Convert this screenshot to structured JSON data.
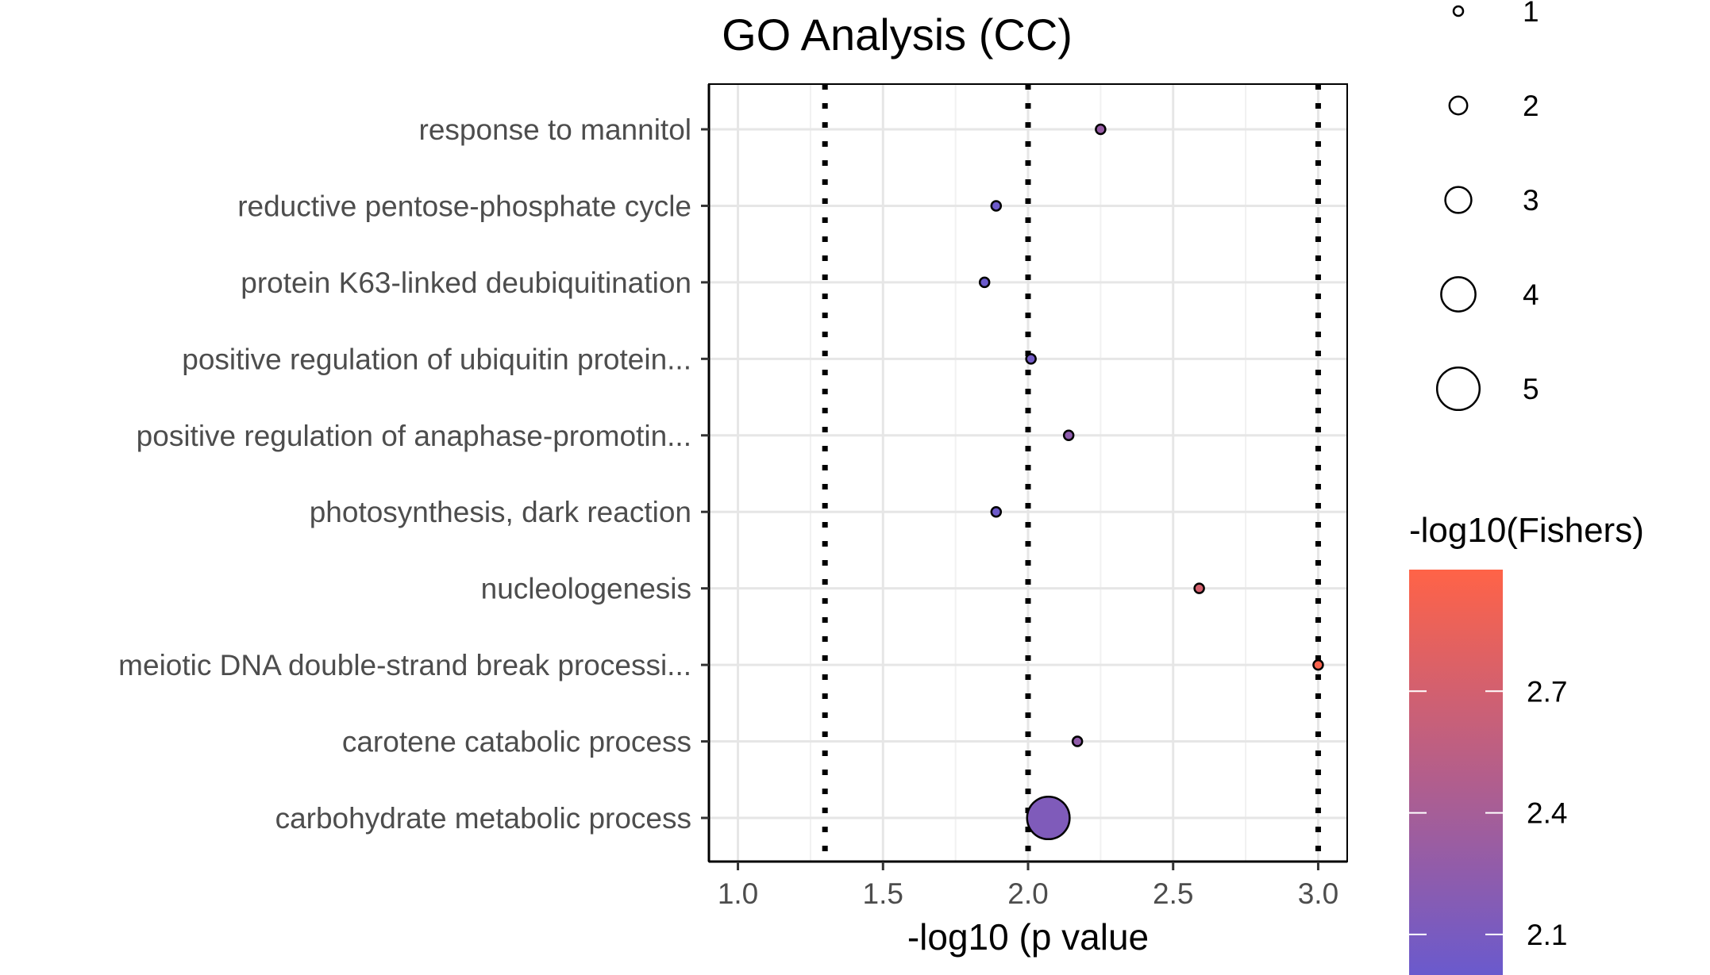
{
  "chart_data": {
    "type": "scatter",
    "title": "GO Analysis (CC)",
    "xlabel": "-log10 (p value",
    "ylabel": "",
    "xlim": [
      0.9,
      3.1
    ],
    "x_ticks": [
      "1.0",
      "1.5",
      "2.0",
      "2.5",
      "3.0"
    ],
    "x_tick_values": [
      1.0,
      1.5,
      2.0,
      2.5,
      3.0
    ],
    "grid": true,
    "reference_lines": [
      1.3,
      2.0,
      3.0
    ],
    "categories": [
      "response to mannitol",
      "reductive pentose-phosphate cycle",
      "protein K63-linked deubiquitination",
      "positive regulation of ubiquitin protein...",
      "positive regulation of anaphase-promotin...",
      "photosynthesis, dark reaction",
      "nucleologenesis",
      "meiotic DNA double-strand break processi...",
      "carotene catabolic process",
      "carbohydrate metabolic process"
    ],
    "points": [
      {
        "category": "response to mannitol",
        "x": 2.25,
        "size": 1,
        "fishers": 2.3
      },
      {
        "category": "reductive pentose-phosphate cycle",
        "x": 1.89,
        "size": 1,
        "fishers": 2.02
      },
      {
        "category": "protein K63-linked deubiquitination",
        "x": 1.85,
        "size": 1,
        "fishers": 2.01
      },
      {
        "category": "positive regulation of ubiquitin protein...",
        "x": 2.01,
        "size": 1,
        "fishers": 2.06
      },
      {
        "category": "positive regulation of anaphase-promotin...",
        "x": 2.14,
        "size": 1,
        "fishers": 2.24
      },
      {
        "category": "photosynthesis, dark reaction",
        "x": 1.89,
        "size": 1,
        "fishers": 2.02
      },
      {
        "category": "nucleologenesis",
        "x": 2.59,
        "size": 1,
        "fishers": 2.72
      },
      {
        "category": "meiotic DNA double-strand break processi...",
        "x": 3.0,
        "size": 1,
        "fishers": 2.95
      },
      {
        "category": "carotene catabolic process",
        "x": 2.17,
        "size": 1,
        "fishers": 2.26
      },
      {
        "category": "carbohydrate metabolic process",
        "x": 2.07,
        "size": 5,
        "fishers": 2.14
      }
    ],
    "size_legend": {
      "title": "",
      "values": [
        1,
        2,
        3,
        4,
        5
      ],
      "labels": [
        "1",
        "2",
        "3",
        "4",
        "5"
      ]
    },
    "color_legend": {
      "title": "-log10(Fishers)",
      "range": [
        2.0,
        3.0
      ],
      "ticks": [
        2.1,
        2.4,
        2.7
      ],
      "tick_labels": [
        "2.1",
        "2.4",
        "2.7"
      ],
      "color_low": "#6a5acd",
      "color_high": "#ff6347"
    }
  }
}
